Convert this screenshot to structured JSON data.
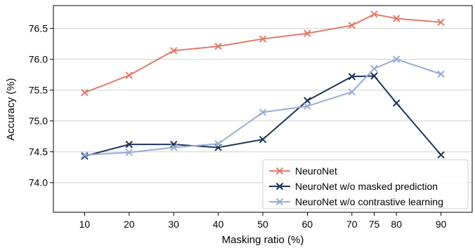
{
  "chart_data": {
    "type": "line",
    "xlabel": "Masking ratio (%)",
    "ylabel": "Accuracy (%)",
    "x": [
      10,
      20,
      30,
      40,
      50,
      60,
      70,
      75,
      80,
      90
    ],
    "x_ticks": [
      "10",
      "20",
      "30",
      "40",
      "50",
      "60",
      "70",
      "75",
      "80",
      "90"
    ],
    "xlim": [
      3,
      97
    ],
    "ylim": [
      73.52,
      76.87
    ],
    "y_ticks": [
      "74.0",
      "74.5",
      "75.0",
      "75.5",
      "76.0",
      "76.5"
    ],
    "grid": "horizontal",
    "legend_position": "bottom-right",
    "series": [
      {
        "name": "NeuroNet",
        "color": "#e07b6a",
        "marker": "x",
        "values": [
          75.46,
          75.74,
          76.14,
          76.21,
          76.33,
          76.42,
          76.55,
          76.73,
          76.66,
          76.6
        ]
      },
      {
        "name": "NeuroNet w/o masked prediction",
        "color": "#1c3557",
        "marker": "x",
        "values": [
          74.43,
          74.62,
          74.62,
          74.57,
          74.7,
          75.33,
          75.72,
          75.73,
          75.29,
          74.45
        ]
      },
      {
        "name": "NeuroNet w/o contrastive learning",
        "color": "#97acd2",
        "marker": "x",
        "values": [
          74.45,
          74.49,
          74.57,
          74.63,
          75.14,
          75.24,
          75.47,
          75.85,
          76.0,
          75.76
        ]
      }
    ]
  }
}
